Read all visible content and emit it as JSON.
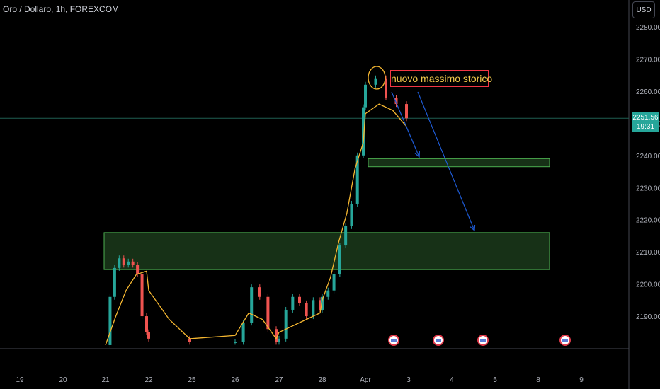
{
  "header": {
    "symbol_label": "Oro / Dollaro, 1h, FOREXCOM"
  },
  "currency_button": "USD",
  "last_price": {
    "value": "2251.56",
    "countdown": "19:31",
    "color": "#26a69a"
  },
  "annotation": {
    "text": "nuovo massimo storico",
    "border_color": "#f23645",
    "text_color": "#f2c94c"
  },
  "colors": {
    "up": "#26a69a",
    "down": "#ef5350",
    "ma": "#f5b731",
    "zone_fill": "#1b3a1b",
    "zone_border": "#4caf50",
    "arrow": "#1e5bd6"
  },
  "chart_data": {
    "type": "candlestick",
    "title": "Oro / Dollaro, 1h, FOREXCOM",
    "ylim": [
      2180,
      2285
    ],
    "y_ticks": [
      "2280.00",
      "2270.00",
      "2260.00",
      "2250.00",
      "2240.00",
      "2230.00",
      "2220.00",
      "2210.00",
      "2200.00",
      "2190.00"
    ],
    "x_ticks": [
      "19",
      "20",
      "21",
      "22",
      "25",
      "26",
      "27",
      "28",
      "Apr",
      "3",
      "4",
      "5",
      "8",
      "9"
    ],
    "series": [
      {
        "kind": "close_path",
        "points": [
          [
            "21",
            2181
          ],
          [
            "21",
            2196
          ],
          [
            "21",
            2205
          ],
          [
            "21",
            2208
          ],
          [
            "21",
            2206
          ],
          [
            "21",
            2207
          ],
          [
            "21",
            2206
          ],
          [
            "21",
            2203
          ],
          [
            "21",
            2190
          ],
          [
            "21",
            2185
          ],
          [
            "22",
            2183
          ],
          [
            "22",
            2182
          ],
          [
            "26",
            2182
          ],
          [
            "26",
            2188
          ],
          [
            "26",
            2199
          ],
          [
            "26",
            2196
          ],
          [
            "26",
            2186
          ],
          [
            "26",
            2182
          ],
          [
            "27",
            2183
          ],
          [
            "27",
            2192
          ],
          [
            "27",
            2196
          ],
          [
            "27",
            2194
          ],
          [
            "27",
            2190
          ],
          [
            "27",
            2195
          ],
          [
            "27",
            2192
          ],
          [
            "28",
            2196
          ],
          [
            "28",
            2198
          ],
          [
            "28",
            2203
          ],
          [
            "28",
            2212
          ],
          [
            "28",
            2218
          ],
          [
            "28",
            2225
          ],
          [
            "28",
            2240
          ],
          [
            "28",
            2255
          ],
          [
            "Apr",
            2262
          ],
          [
            "Apr",
            2264
          ],
          [
            "Apr",
            2258
          ],
          [
            "Apr",
            2256
          ],
          [
            "Apr",
            2251.56
          ]
        ]
      },
      {
        "kind": "moving_average",
        "points": [
          [
            "21",
            2181
          ],
          [
            "21",
            2190
          ],
          [
            "21",
            2198
          ],
          [
            "21",
            2203
          ],
          [
            "21",
            2204
          ],
          [
            "22",
            2198
          ],
          [
            "22",
            2189
          ],
          [
            "22",
            2183
          ],
          [
            "26",
            2184
          ],
          [
            "26",
            2191
          ],
          [
            "26",
            2189
          ],
          [
            "26",
            2183
          ],
          [
            "27",
            2185
          ],
          [
            "27",
            2188
          ],
          [
            "27",
            2191
          ],
          [
            "28",
            2195
          ],
          [
            "28",
            2202
          ],
          [
            "28",
            2213
          ],
          [
            "28",
            2222
          ],
          [
            "28",
            2236
          ],
          [
            "28",
            2244
          ],
          [
            "Apr",
            2253
          ],
          [
            "Apr",
            2256
          ],
          [
            "Apr",
            2254
          ],
          [
            "Apr",
            2249
          ]
        ]
      }
    ],
    "zones": [
      {
        "y1": 2204.5,
        "y2": 2216
      },
      {
        "y1": 2236.5,
        "y2": 2239
      }
    ],
    "horizontal_lines": [
      {
        "y": 2251.56
      }
    ],
    "arrows": [
      {
        "from": [
          "Apr",
          2261
        ],
        "to": [
          "3",
          2239
        ]
      },
      {
        "from": [
          "Apr",
          2262
        ],
        "to": [
          "4",
          2217
        ]
      }
    ],
    "grid": false
  }
}
